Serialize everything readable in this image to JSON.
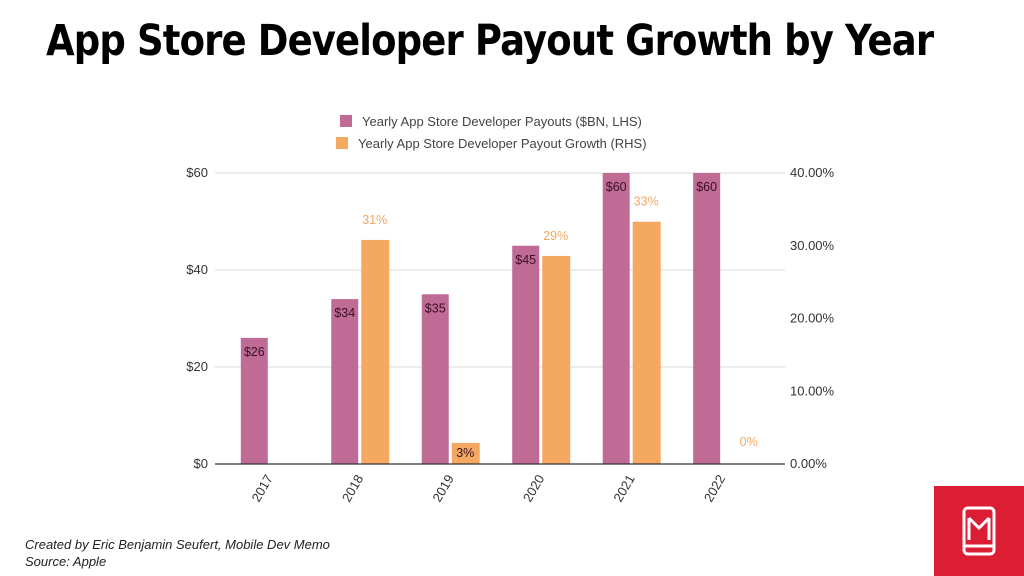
{
  "title": "App Store Developer Payout Growth by Year",
  "footer": {
    "credit": "Created by Eric Benjamin Seufert, Mobile Dev Memo",
    "source": "Source: Apple"
  },
  "logo": {
    "icon": "mobile-phone-m-icon"
  },
  "colors": {
    "payouts": "#c06b96",
    "growth": "#f5a862",
    "label_dark": "#3a1020",
    "label_growth": "#f5a862",
    "grid": "#d9d9d9",
    "axis": "#333333"
  },
  "chart_data": {
    "type": "bar",
    "categories": [
      "2017",
      "2018",
      "2019",
      "2020",
      "2021",
      "2022"
    ],
    "series": [
      {
        "name": "Yearly App Store Developer Payouts ($BN, LHS)",
        "axis": "left",
        "values": [
          26,
          34,
          35,
          45,
          60,
          60
        ],
        "labels": [
          "$26",
          "$34",
          "$35",
          "$45",
          "$60",
          "$60"
        ]
      },
      {
        "name": "Yearly App Store Developer Payout Growth (RHS)",
        "axis": "right",
        "values": [
          null,
          30.8,
          2.9,
          28.6,
          33.3,
          0
        ],
        "labels": [
          "",
          "31%",
          "3%",
          "29%",
          "33%",
          "0%"
        ]
      }
    ],
    "left_axis": {
      "ylim": [
        0,
        60
      ],
      "ticks": [
        0,
        20,
        40,
        60
      ],
      "tick_labels": [
        "$0",
        "$20",
        "$40",
        "$60"
      ]
    },
    "right_axis": {
      "ylim": [
        0,
        40
      ],
      "ticks": [
        0,
        10,
        20,
        30,
        40
      ],
      "tick_labels": [
        "0.00%",
        "10.00%",
        "20.00%",
        "30.00%",
        "40.00%"
      ]
    },
    "grid": true,
    "legend_position": "top-center"
  }
}
